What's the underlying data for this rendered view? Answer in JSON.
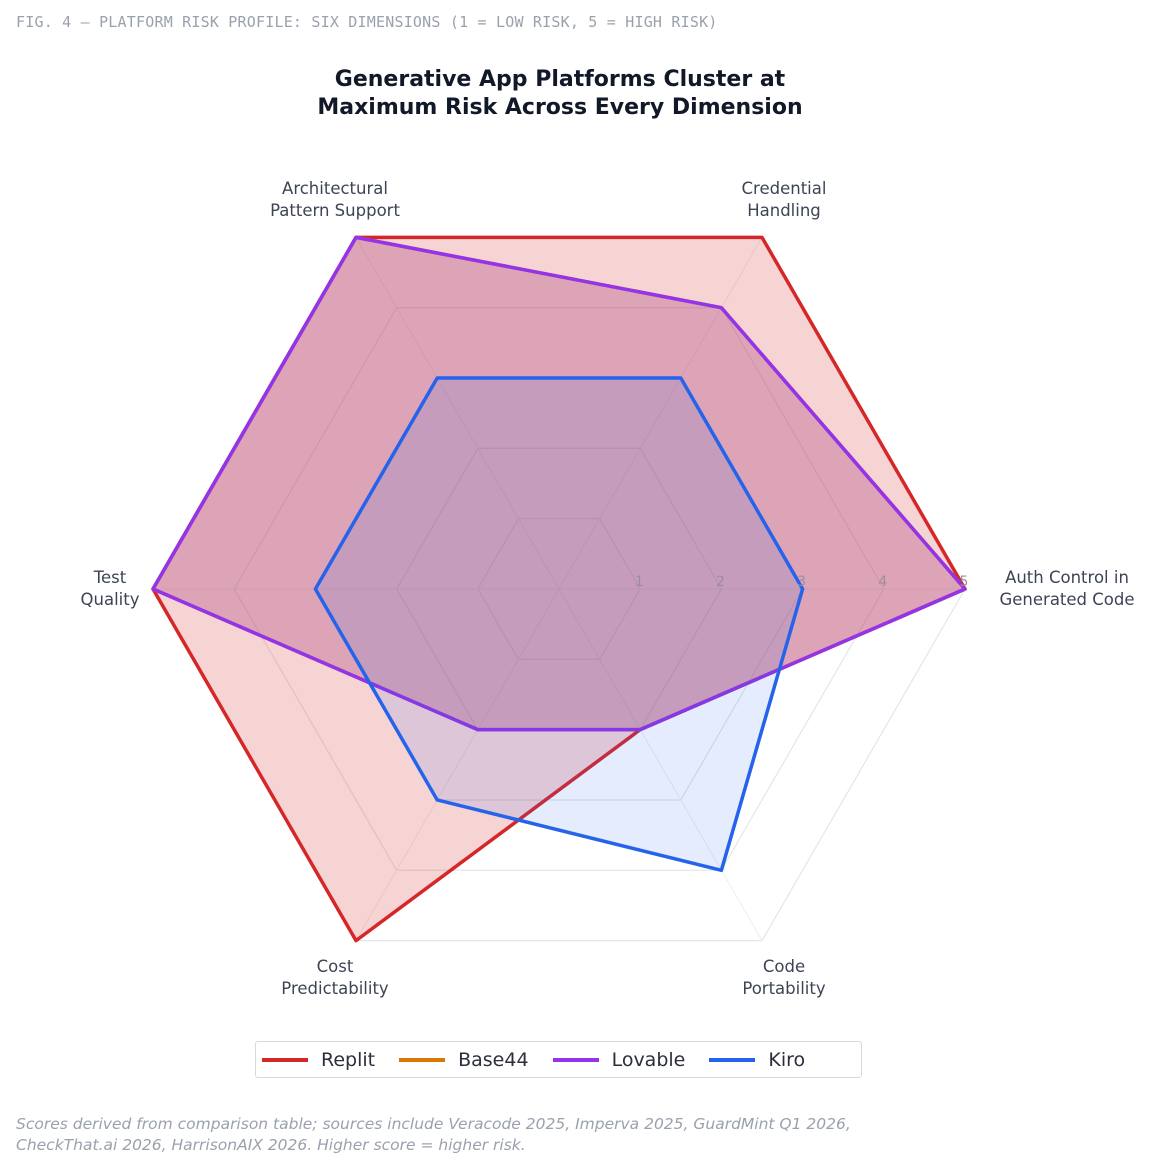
{
  "figure_label": "FIG. 4 — PLATFORM RISK PROFILE: SIX DIMENSIONS (1 = LOW RISK, 5 = HIGH RISK)",
  "footnote": {
    "line1": "Scores derived from comparison table; sources include Veracode 2025, Imperva 2025, GuardMint Q1 2026,",
    "line2": "CheckThat.ai 2026, HarrisonAIX 2026. Higher score = higher risk."
  },
  "chart_data": {
    "type": "radar",
    "title": [
      "Generative App Platforms Cluster at",
      "Maximum Risk Across Every Dimension"
    ],
    "axes": [
      [
        "Auth Control in",
        "Generated Code"
      ],
      [
        "Credential",
        "Handling"
      ],
      [
        "Architectural",
        "Pattern Support"
      ],
      [
        "Test",
        "Quality"
      ],
      [
        "Cost",
        "Predictability"
      ],
      [
        "Code",
        "Portability"
      ]
    ],
    "range": [
      0,
      5
    ],
    "ticks": [
      "1",
      "2",
      "3",
      "4",
      "5"
    ],
    "tick_values": [
      1,
      2,
      3,
      4,
      5
    ],
    "grid": true,
    "legend_position": "bottom",
    "series": [
      {
        "name": "Replit",
        "color": "#d62728",
        "values": [
          5,
          5,
          5,
          5,
          5,
          2
        ],
        "fill_opacity": 0.2
      },
      {
        "name": "Base44",
        "color": "#d97706",
        "values": [
          5,
          4,
          5,
          5,
          2,
          2
        ],
        "fill_opacity": 0.2
      },
      {
        "name": "Lovable",
        "color": "#9333ea",
        "values": [
          5,
          4,
          5,
          5,
          2,
          2
        ],
        "fill_opacity": 0.2
      },
      {
        "name": "Kiro",
        "color": "#2563eb",
        "values": [
          3,
          3,
          3,
          3,
          3,
          4
        ],
        "fill_opacity": 0.12
      }
    ]
  }
}
